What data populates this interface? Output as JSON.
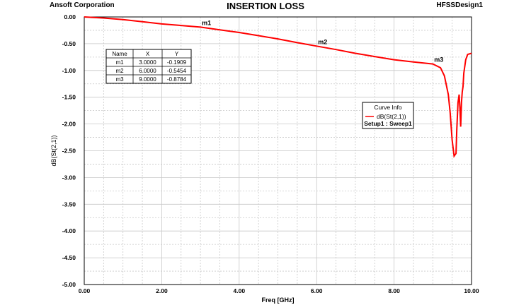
{
  "header": {
    "company": "Ansoft Corporation",
    "title": "INSERTION LOSS",
    "design": "HFSSDesign1"
  },
  "colors": {
    "trace": "#ff0000",
    "grid": "#c8c8c8",
    "frame": "#000000"
  },
  "chart_data": {
    "type": "line",
    "title": "INSERTION LOSS",
    "xlabel": "Freq [GHz]",
    "ylabel": "dB(St(2,1))",
    "xlim": [
      0,
      10
    ],
    "ylim": [
      -5,
      0
    ],
    "x_major_ticks": [
      "0.00",
      "2.00",
      "4.00",
      "6.00",
      "8.00",
      "10.00"
    ],
    "y_major_ticks": [
      "0.00",
      "-0.50",
      "-1.00",
      "-1.50",
      "-2.00",
      "-2.50",
      "-3.00",
      "-3.50",
      "-4.00",
      "-4.50",
      "-5.00"
    ],
    "grid": true,
    "series": [
      {
        "name": "dB(St(2,1))",
        "x": [
          0.0,
          0.5,
          1.0,
          1.5,
          2.0,
          2.5,
          3.0,
          3.5,
          4.0,
          4.5,
          5.0,
          5.5,
          6.0,
          6.5,
          7.0,
          7.5,
          8.0,
          8.5,
          9.0,
          9.2,
          9.3,
          9.4,
          9.45,
          9.5,
          9.55,
          9.6,
          9.62,
          9.65,
          9.68,
          9.7,
          9.72,
          9.74,
          9.76,
          9.78,
          9.8,
          9.85,
          9.9,
          10.0
        ],
        "y": [
          0.0,
          -0.02,
          -0.05,
          -0.09,
          -0.13,
          -0.16,
          -0.19,
          -0.24,
          -0.29,
          -0.35,
          -0.41,
          -0.48,
          -0.545,
          -0.61,
          -0.68,
          -0.74,
          -0.8,
          -0.84,
          -0.878,
          -0.95,
          -1.1,
          -1.45,
          -1.8,
          -2.3,
          -2.6,
          -2.55,
          -2.1,
          -1.6,
          -1.45,
          -1.7,
          -2.05,
          -1.6,
          -1.4,
          -1.3,
          -1.05,
          -0.8,
          -0.7,
          -0.68
        ]
      }
    ],
    "markers": {
      "columns": [
        "Name",
        "X",
        "Y"
      ],
      "rows": [
        [
          "m1",
          "3.0000",
          "-0.1909"
        ],
        [
          "m2",
          "6.0000",
          "-0.5454"
        ],
        [
          "m3",
          "9.0000",
          "-0.8784"
        ]
      ],
      "points": [
        {
          "label": "m1",
          "x": 3.0,
          "y": -0.1909
        },
        {
          "label": "m2",
          "x": 6.0,
          "y": -0.5454
        },
        {
          "label": "m3",
          "x": 9.0,
          "y": -0.8784
        }
      ]
    },
    "legend": {
      "title": "Curve Info",
      "entry": "dB(St(2,1))",
      "setup": "Setup1 : Sweep1"
    }
  }
}
